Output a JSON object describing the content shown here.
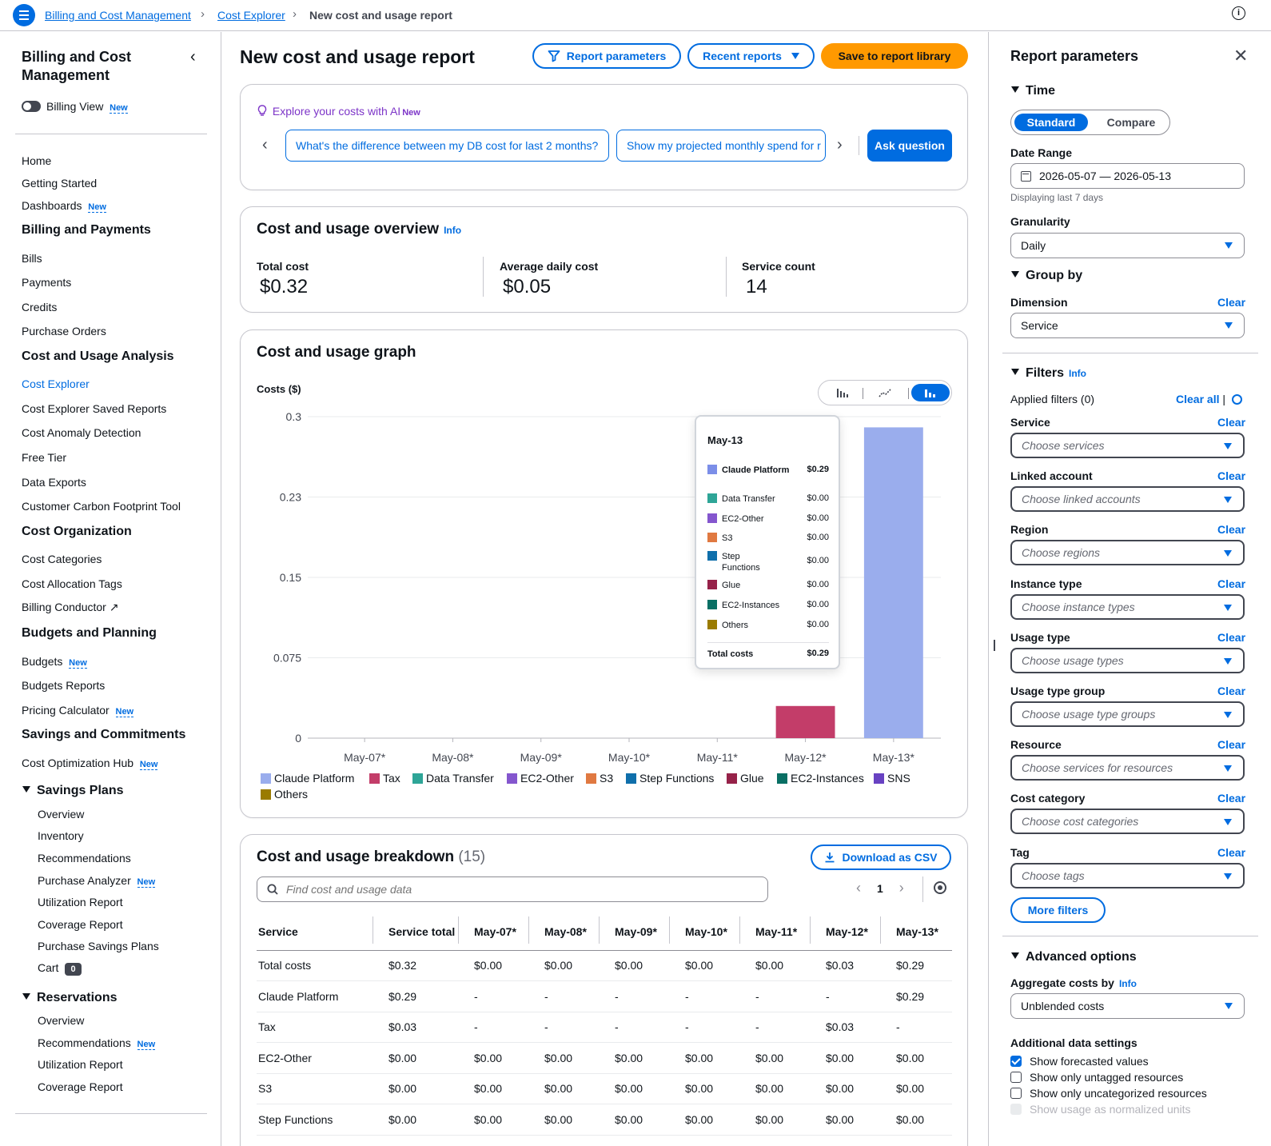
{
  "breadcrumbs": [
    {
      "label": "Billing and Cost Management"
    },
    {
      "label": "Cost Explorer"
    },
    {
      "label": "New cost and usage report"
    }
  ],
  "nav": {
    "title": "Billing and Cost Management",
    "billing_view": "Billing View",
    "new_tag": "New",
    "items": {
      "home": "Home",
      "getting_started": "Getting Started",
      "dashboards": "Dashboards",
      "billing_payments": "Billing and Payments",
      "bills": "Bills",
      "payments": "Payments",
      "credits": "Credits",
      "purchase_orders": "Purchase Orders",
      "cost_usage_analysis": "Cost and Usage Analysis",
      "cost_explorer": "Cost Explorer",
      "ce_saved_reports": "Cost Explorer Saved Reports",
      "anomaly": "Cost Anomaly Detection",
      "free_tier": "Free Tier",
      "data_exports": "Data Exports",
      "carbon": "Customer Carbon Footprint Tool",
      "cost_org": "Cost Organization",
      "cost_categories": "Cost Categories",
      "allocation_tags": "Cost Allocation Tags",
      "billing_conductor": "Billing Conductor",
      "budgets_planning": "Budgets and Planning",
      "budgets": "Budgets",
      "budgets_reports": "Budgets Reports",
      "pricing_calc": "Pricing Calculator",
      "savings_commitments": "Savings and Commitments",
      "cost_opt_hub": "Cost Optimization Hub",
      "savings_plans": "Savings Plans",
      "sp_overview": "Overview",
      "sp_inventory": "Inventory",
      "sp_recommendations": "Recommendations",
      "sp_purchase_analyzer": "Purchase Analyzer",
      "sp_utilization": "Utilization Report",
      "sp_coverage": "Coverage Report",
      "sp_purchase": "Purchase Savings Plans",
      "sp_cart": "Cart",
      "sp_cart_count": "0",
      "reservations": "Reservations",
      "res_overview": "Overview",
      "res_recommendations": "Recommendations",
      "res_utilization": "Utilization Report",
      "res_coverage": "Coverage Report"
    }
  },
  "header": {
    "title": "New cost and usage report",
    "report_parameters": "Report parameters",
    "recent_reports": "Recent reports",
    "save": "Save to report library"
  },
  "ai": {
    "label": "Explore your costs with AI",
    "new": "New",
    "chip1": "What's the difference between my DB cost for last 2 months?",
    "chip2": "Show my projected monthly spend for r",
    "ask": "Ask question"
  },
  "overview": {
    "title": "Cost and usage overview",
    "info": "Info",
    "total_label": "Total cost",
    "total_value": "$0.32",
    "avg_label": "Average daily cost",
    "avg_value": "$0.05",
    "count_label": "Service count",
    "count_value": "14"
  },
  "graph": {
    "title": "Cost and usage graph",
    "ylabel": "Costs ($)",
    "selected_view": "stacked-bar",
    "tooltip": {
      "title": "May-13",
      "rows": [
        {
          "name": "Claude Platform",
          "value": "$0.29",
          "color": "#7b8ee8"
        },
        {
          "name": "Data Transfer",
          "value": "$0.00",
          "color": "#2ea597"
        },
        {
          "name": "EC2-Other",
          "value": "$0.00",
          "color": "#8456ce"
        },
        {
          "name": "S3",
          "value": "$0.00",
          "color": "#e07941"
        },
        {
          "name": "Step Functions",
          "value": "$0.00",
          "color": "#0f6fab"
        },
        {
          "name": "Glue",
          "value": "$0.00",
          "color": "#962249"
        },
        {
          "name": "EC2-Instances",
          "value": "$0.00",
          "color": "#096f64"
        },
        {
          "name": "Others",
          "value": "$0.00",
          "color": "#9a7b00"
        }
      ],
      "total_label": "Total costs",
      "total_value": "$0.29"
    }
  },
  "chart_data": {
    "type": "bar",
    "stacked": true,
    "categories": [
      "May-07*",
      "May-08*",
      "May-09*",
      "May-10*",
      "May-11*",
      "May-12*",
      "May-13*"
    ],
    "ylim": [
      0,
      0.3
    ],
    "yticks": [
      "0",
      "0.075",
      "0.15",
      "0.23",
      "0.3"
    ],
    "ytick_values": [
      0,
      0.075,
      0.15,
      0.225,
      0.3
    ],
    "ylabel": "Costs ($)",
    "grid": true,
    "legend_position": "bottom",
    "series": [
      {
        "name": "Claude Platform",
        "color": "#9aaded",
        "values": [
          0,
          0,
          0,
          0,
          0,
          0,
          0.29
        ]
      },
      {
        "name": "Tax",
        "color": "#c33d69",
        "values": [
          0,
          0,
          0,
          0,
          0,
          0.03,
          0
        ]
      },
      {
        "name": "Data Transfer",
        "color": "#2ea597",
        "values": [
          0,
          0,
          0,
          0,
          0,
          0,
          0
        ]
      },
      {
        "name": "EC2-Other",
        "color": "#8456ce",
        "values": [
          0,
          0,
          0,
          0,
          0,
          0,
          0
        ]
      },
      {
        "name": "S3",
        "color": "#e07941",
        "values": [
          0,
          0,
          0,
          0,
          0,
          0,
          0
        ]
      },
      {
        "name": "Step Functions",
        "color": "#0f6fab",
        "values": [
          0,
          0,
          0,
          0,
          0,
          0,
          0
        ]
      },
      {
        "name": "Glue",
        "color": "#962249",
        "values": [
          0,
          0,
          0,
          0,
          0,
          0,
          0
        ]
      },
      {
        "name": "EC2-Instances",
        "color": "#096f64",
        "values": [
          0,
          0,
          0,
          0,
          0,
          0,
          0
        ]
      },
      {
        "name": "SNS",
        "color": "#6842c2",
        "values": [
          0,
          0,
          0,
          0,
          0,
          0,
          0
        ]
      },
      {
        "name": "Others",
        "color": "#9a7b00",
        "values": [
          0,
          0,
          0,
          0,
          0,
          0,
          0
        ]
      }
    ]
  },
  "breakdown": {
    "title": "Cost and usage breakdown",
    "count": "(15)",
    "download": "Download as CSV",
    "search_placeholder": "Find cost and usage data",
    "page": "1",
    "columns": [
      "Service",
      "Service total",
      "May-07*",
      "May-08*",
      "May-09*",
      "May-10*",
      "May-11*",
      "May-12*",
      "May-13*"
    ],
    "rows": [
      [
        "Total costs",
        "$0.32",
        "$0.00",
        "$0.00",
        "$0.00",
        "$0.00",
        "$0.00",
        "$0.03",
        "$0.29"
      ],
      [
        "Claude Platform",
        "$0.29",
        "-",
        "-",
        "-",
        "-",
        "-",
        "-",
        "$0.29"
      ],
      [
        "Tax",
        "$0.03",
        "-",
        "-",
        "-",
        "-",
        "-",
        "$0.03",
        "-"
      ],
      [
        "EC2-Other",
        "$0.00",
        "$0.00",
        "$0.00",
        "$0.00",
        "$0.00",
        "$0.00",
        "$0.00",
        "$0.00"
      ],
      [
        "S3",
        "$0.00",
        "$0.00",
        "$0.00",
        "$0.00",
        "$0.00",
        "$0.00",
        "$0.00",
        "$0.00"
      ],
      [
        "Step Functions",
        "$0.00",
        "$0.00",
        "$0.00",
        "$0.00",
        "$0.00",
        "$0.00",
        "$0.00",
        "$0.00"
      ]
    ]
  },
  "params": {
    "title": "Report parameters",
    "time": "Time",
    "standard": "Standard",
    "compare": "Compare",
    "date_range_label": "Date Range",
    "date_range": "2026-05-07 — 2026-05-13",
    "date_hint": "Displaying last 7 days",
    "granularity_label": "Granularity",
    "granularity": "Daily",
    "group_by": "Group by",
    "dimension_label": "Dimension",
    "dimension": "Service",
    "clear": "Clear",
    "filters": "Filters",
    "info": "Info",
    "applied": "Applied filters (0)",
    "clear_all": "Clear all",
    "filter_fields": [
      {
        "label": "Service",
        "placeholder": "Choose services"
      },
      {
        "label": "Linked account",
        "placeholder": "Choose linked accounts"
      },
      {
        "label": "Region",
        "placeholder": "Choose regions"
      },
      {
        "label": "Instance type",
        "placeholder": "Choose instance types"
      },
      {
        "label": "Usage type",
        "placeholder": "Choose usage types"
      },
      {
        "label": "Usage type group",
        "placeholder": "Choose usage type groups"
      },
      {
        "label": "Resource",
        "placeholder": "Choose services for resources"
      },
      {
        "label": "Cost category",
        "placeholder": "Choose cost categories"
      },
      {
        "label": "Tag",
        "placeholder": "Choose tags"
      }
    ],
    "more_filters": "More filters",
    "advanced": "Advanced options",
    "aggregate_label": "Aggregate costs by",
    "aggregate": "Unblended costs",
    "additional": "Additional data settings",
    "checkboxes": [
      {
        "label": "Show forecasted values",
        "checked": true
      },
      {
        "label": "Show only untagged resources",
        "checked": false
      },
      {
        "label": "Show only uncategorized resources",
        "checked": false
      },
      {
        "label": "Show usage as normalized units",
        "checked": false,
        "disabled": true
      }
    ]
  }
}
